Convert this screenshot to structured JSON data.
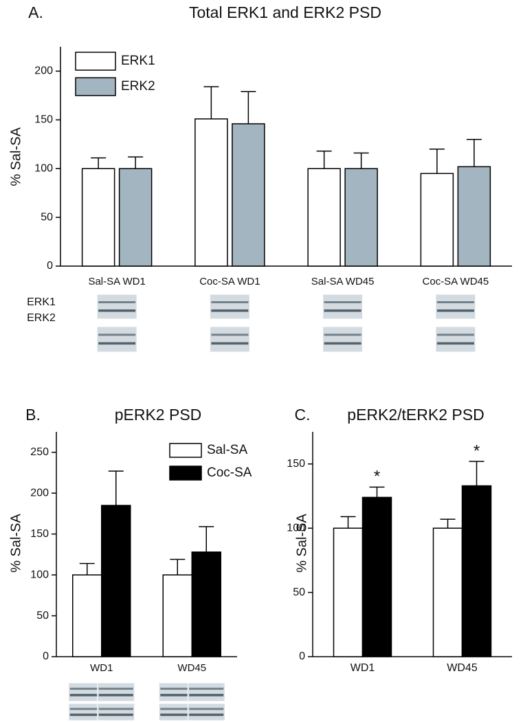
{
  "chart_data": [
    {
      "type": "bar",
      "panel": "A.",
      "title": "Total ERK1 and ERK2 PSD",
      "y_label": "% Sal-SA",
      "categories": [
        "Sal-SA  WD1",
        "Coc-SA  WD1",
        "Sal-SA  WD45",
        "Coc-SA  WD45"
      ],
      "series": [
        {
          "name": "ERK1",
          "color": "#ffffff",
          "values": [
            100,
            151,
            100,
            95
          ],
          "errors": [
            11,
            33,
            18,
            25
          ]
        },
        {
          "name": "ERK2",
          "color": "#a3b5c0",
          "values": [
            100,
            146,
            100,
            102
          ],
          "errors": [
            12,
            33,
            16,
            28
          ]
        }
      ],
      "ylim": [
        0,
        225
      ],
      "yticks": [
        0,
        50,
        100,
        150,
        200
      ],
      "legend": "upper left",
      "blot_labels": [
        "ERK1",
        "ERK2"
      ]
    },
    {
      "type": "bar",
      "panel": "B.",
      "title": "pERK2 PSD",
      "y_label": "% Sal-SA",
      "categories": [
        "WD1",
        "WD45"
      ],
      "series": [
        {
          "name": "Sal-SA",
          "color": "#ffffff",
          "values": [
            100,
            100
          ],
          "errors": [
            14,
            19
          ]
        },
        {
          "name": "Coc-SA",
          "color": "#000000",
          "values": [
            185,
            128
          ],
          "errors": [
            42,
            31
          ]
        }
      ],
      "ylim": [
        0,
        275
      ],
      "yticks": [
        0,
        50,
        100,
        150,
        200,
        250
      ],
      "legend": "upper right"
    },
    {
      "type": "bar",
      "panel": "C.",
      "title": "pERK2/tERK2 PSD",
      "y_label": "% Sal-SA",
      "categories": [
        "WD1",
        "WD45"
      ],
      "series": [
        {
          "name": "Sal-SA",
          "color": "#ffffff",
          "values": [
            100,
            100
          ],
          "errors": [
            9,
            7
          ]
        },
        {
          "name": "Coc-SA",
          "color": "#000000",
          "values": [
            124,
            133
          ],
          "errors": [
            8,
            19
          ],
          "annotations": [
            "*",
            "*"
          ]
        }
      ],
      "ylim": [
        0,
        175
      ],
      "yticks": [
        0,
        50,
        100,
        150
      ]
    }
  ]
}
